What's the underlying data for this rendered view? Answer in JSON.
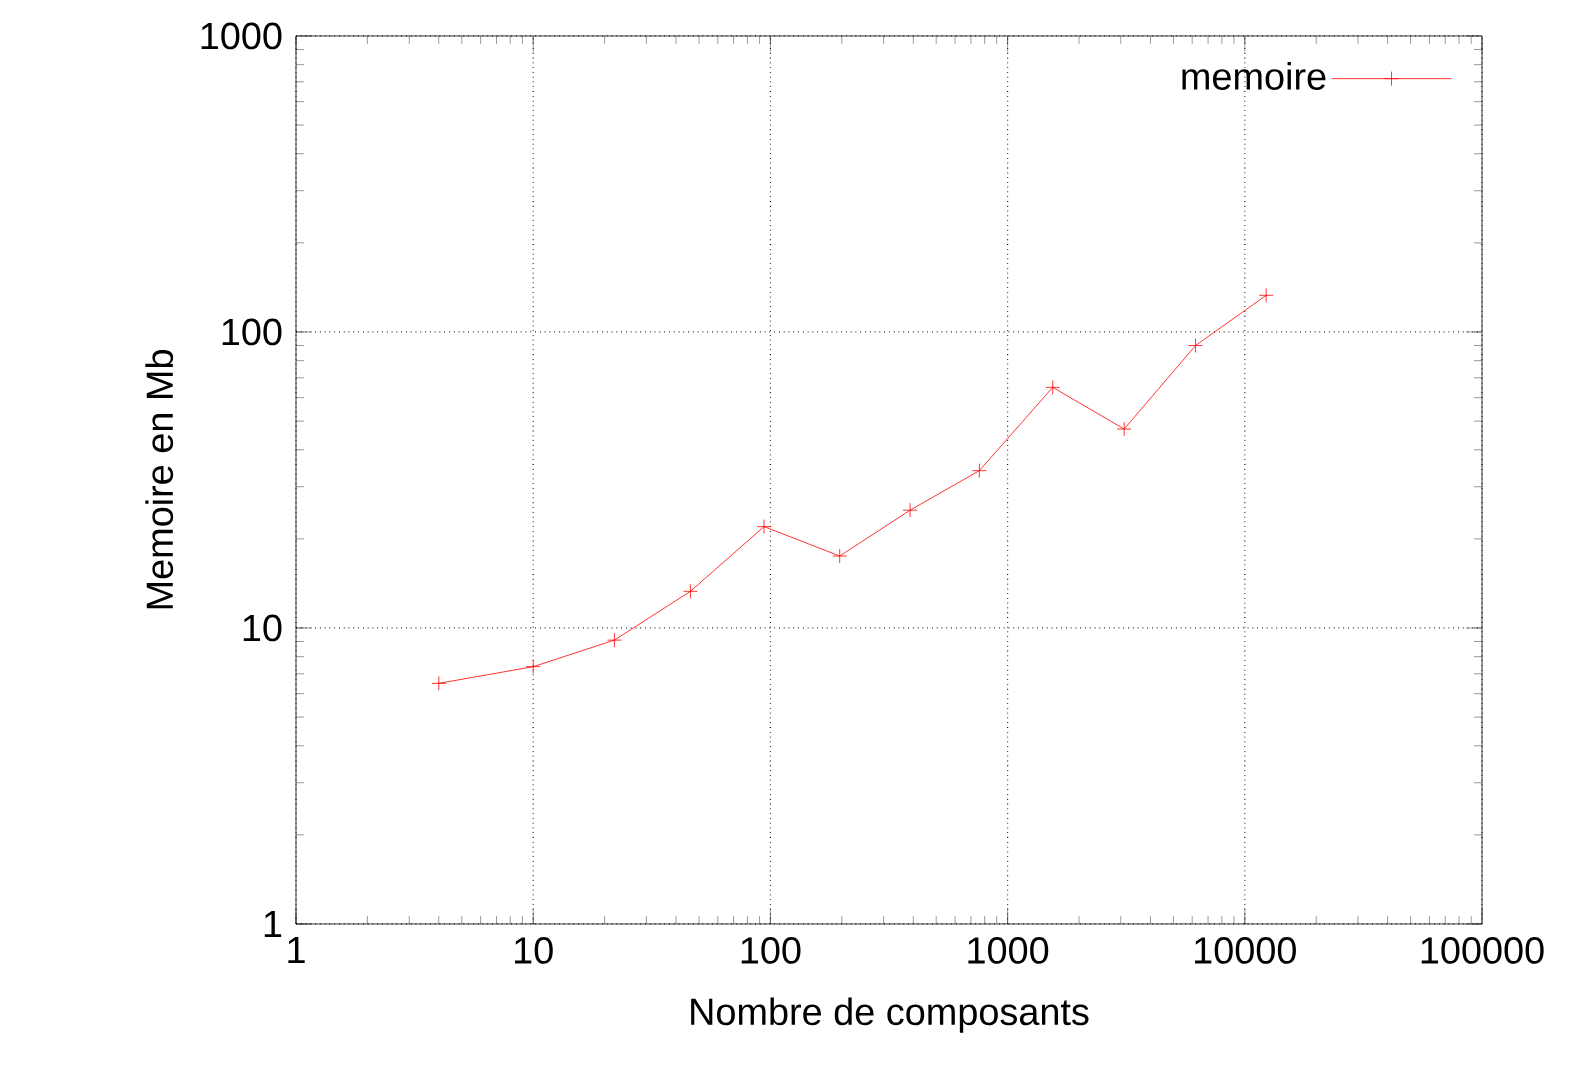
{
  "chart_data": {
    "type": "line",
    "xlabel": "Nombre de composants",
    "ylabel": "Memoire en Mb",
    "x": [
      4,
      10,
      22,
      46,
      94,
      196,
      388,
      760,
      1550,
      3100,
      6200,
      12300
    ],
    "series": [
      {
        "name": "memoire",
        "color": "#ff0000",
        "values": [
          6.5,
          7.4,
          9.1,
          13.3,
          22,
          17.5,
          25,
          34,
          65,
          47,
          90,
          133
        ]
      }
    ],
    "log": "xy",
    "xlim": [
      1,
      100000
    ],
    "ylim": [
      1,
      1000
    ],
    "xticks": [
      1,
      10,
      100,
      1000,
      10000,
      100000
    ],
    "yticks": [
      1,
      10,
      100,
      1000
    ],
    "grid": true,
    "legend": "top right",
    "marker": "cross",
    "line_style": "solid"
  }
}
